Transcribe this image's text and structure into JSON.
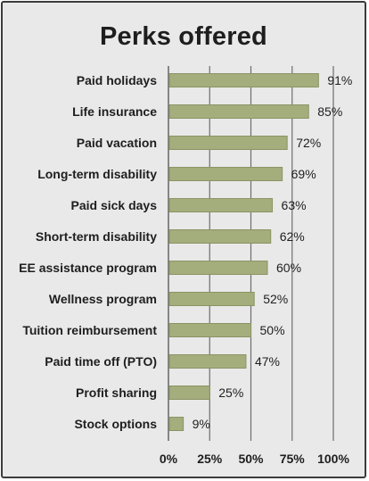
{
  "chart_data": {
    "type": "bar",
    "orientation": "horizontal",
    "title": "Perks offered",
    "xlabel": "",
    "ylabel": "",
    "xlim": [
      0,
      100
    ],
    "x_ticks": [
      "0%",
      "25%",
      "50%",
      "75%",
      "100%"
    ],
    "grid": "vertical",
    "colors": {
      "bar": "#a4ad7c",
      "bar_edge": "#8b9464",
      "grid": "#6e6e6e",
      "text": "#1e1e1e",
      "background": "#e9e9e9"
    },
    "categories": [
      "Paid holidays",
      "Life insurance",
      "Paid vacation",
      "Long-term disability",
      "Paid sick days",
      "Short-term disability",
      "EE assistance program",
      "Wellness program",
      "Tuition reimbursement",
      "Paid time off (PTO)",
      "Profit sharing",
      "Stock options"
    ],
    "values": [
      91,
      85,
      72,
      69,
      63,
      62,
      60,
      52,
      50,
      47,
      25,
      9
    ],
    "value_labels": [
      "91%",
      "85%",
      "72%",
      "69%",
      "63%",
      "62%",
      "60%",
      "52%",
      "50%",
      "47%",
      "25%",
      "9%"
    ]
  }
}
